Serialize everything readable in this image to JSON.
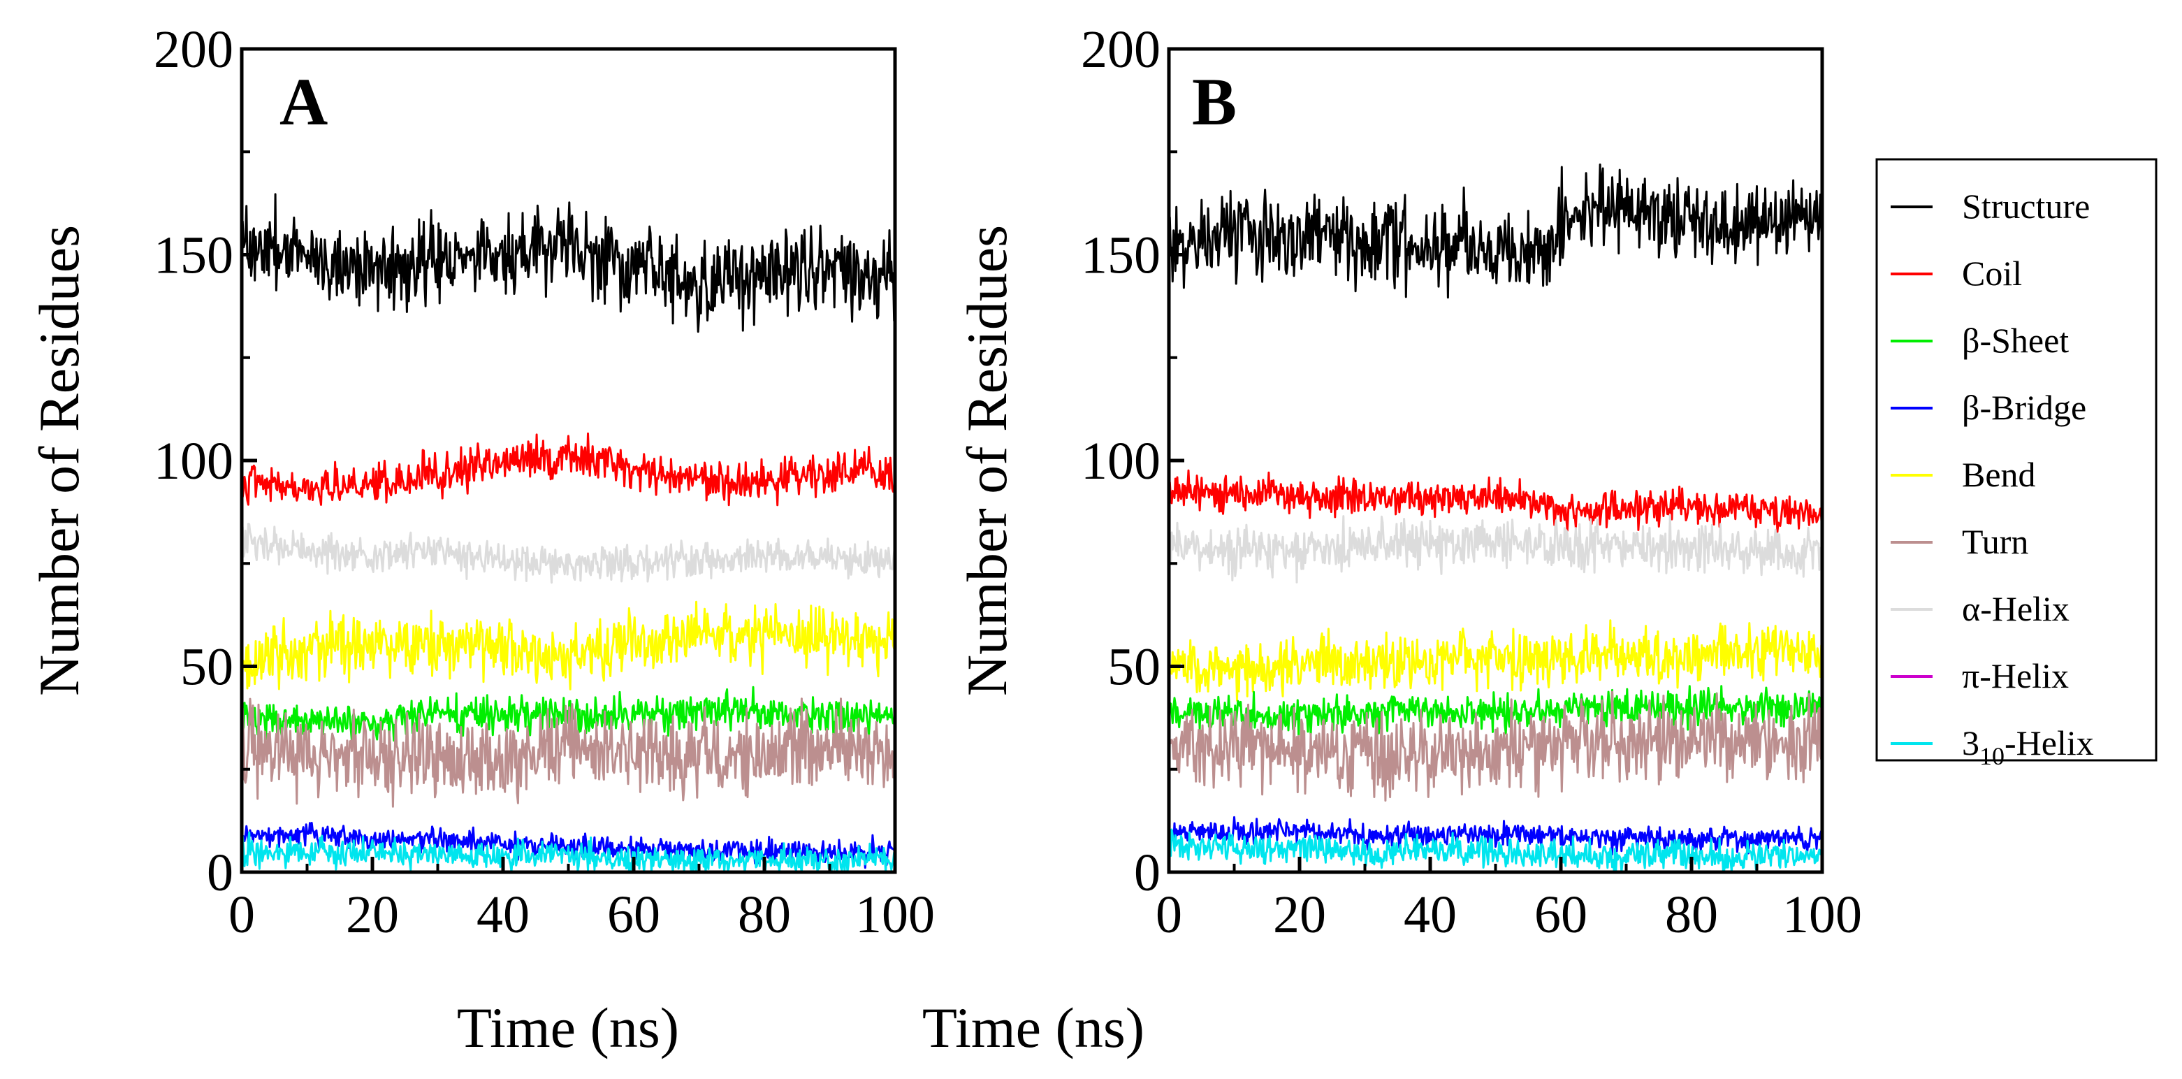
{
  "chart_data": [
    {
      "type": "line",
      "panel_label": "A",
      "xlabel": "Time (ns)",
      "ylabel": "Number of Residues",
      "xlim": [
        0,
        100
      ],
      "ylim": [
        0,
        200
      ],
      "xticks": [
        "0",
        "20",
        "40",
        "60",
        "80",
        "100"
      ],
      "yticks": [
        "0",
        "50",
        "100",
        "150",
        "200"
      ],
      "series": [
        {
          "name": "Structure",
          "color": "#000000",
          "noise": 7,
          "points": [
            [
              0,
              153
            ],
            [
              10,
              150
            ],
            [
              20,
              147
            ],
            [
              30,
              149
            ],
            [
              40,
              150
            ],
            [
              50,
              152
            ],
            [
              60,
              146
            ],
            [
              70,
              142
            ],
            [
              80,
              146
            ],
            [
              90,
              148
            ],
            [
              100,
              143
            ]
          ]
        },
        {
          "name": "Coil",
          "color": "#ff0000",
          "noise": 3.5,
          "points": [
            [
              0,
              95
            ],
            [
              10,
              93
            ],
            [
              20,
              94
            ],
            [
              30,
              97
            ],
            [
              40,
              99
            ],
            [
              50,
              101
            ],
            [
              60,
              98
            ],
            [
              70,
              96
            ],
            [
              80,
              94
            ],
            [
              90,
              97
            ],
            [
              100,
              97
            ]
          ]
        },
        {
          "name": "α-Helix",
          "color": "#dcdcdc",
          "noise": 3,
          "points": [
            [
              0,
              80
            ],
            [
              10,
              78
            ],
            [
              20,
              77
            ],
            [
              30,
              78
            ],
            [
              40,
              76
            ],
            [
              50,
              75
            ],
            [
              60,
              75
            ],
            [
              70,
              76
            ],
            [
              80,
              77
            ],
            [
              90,
              76
            ],
            [
              100,
              76
            ]
          ]
        },
        {
          "name": "Bend",
          "color": "#ffff00",
          "noise": 5,
          "points": [
            [
              0,
              52
            ],
            [
              10,
              54
            ],
            [
              20,
              55
            ],
            [
              30,
              55
            ],
            [
              40,
              55
            ],
            [
              50,
              52
            ],
            [
              60,
              56
            ],
            [
              70,
              57
            ],
            [
              80,
              58
            ],
            [
              90,
              57
            ],
            [
              100,
              57
            ]
          ]
        },
        {
          "name": "β-Sheet",
          "color": "#00ee00",
          "noise": 3,
          "points": [
            [
              0,
              37
            ],
            [
              10,
              37
            ],
            [
              20,
              36
            ],
            [
              30,
              38
            ],
            [
              40,
              38
            ],
            [
              50,
              38
            ],
            [
              60,
              38
            ],
            [
              70,
              39
            ],
            [
              80,
              39
            ],
            [
              90,
              38
            ],
            [
              100,
              38
            ]
          ]
        },
        {
          "name": "Turn",
          "color": "#bc8f8f",
          "noise": 7,
          "points": [
            [
              0,
              30
            ],
            [
              10,
              30
            ],
            [
              20,
              28
            ],
            [
              30,
              28
            ],
            [
              40,
              27
            ],
            [
              50,
              30
            ],
            [
              60,
              29
            ],
            [
              70,
              28
            ],
            [
              80,
              29
            ],
            [
              90,
              30
            ],
            [
              100,
              29
            ]
          ]
        },
        {
          "name": "β-Bridge",
          "color": "#0000ff",
          "noise": 2,
          "points": [
            [
              0,
              9
            ],
            [
              10,
              9
            ],
            [
              20,
              8
            ],
            [
              30,
              8
            ],
            [
              40,
              7
            ],
            [
              50,
              6
            ],
            [
              60,
              6
            ],
            [
              70,
              5
            ],
            [
              80,
              5
            ],
            [
              90,
              5
            ],
            [
              100,
              5
            ]
          ]
        },
        {
          "name": "π-Helix",
          "color": "#cc00cc",
          "noise": 0,
          "points": [
            [
              0,
              0
            ],
            [
              100,
              0
            ]
          ]
        },
        {
          "name": "310-Helix",
          "color": "#00e5ee",
          "noise": 2.5,
          "points": [
            [
              0,
              5
            ],
            [
              10,
              5
            ],
            [
              20,
              5
            ],
            [
              30,
              4
            ],
            [
              40,
              4
            ],
            [
              50,
              4
            ],
            [
              60,
              3
            ],
            [
              70,
              3
            ],
            [
              80,
              3
            ],
            [
              90,
              3
            ],
            [
              100,
              3
            ]
          ]
        }
      ]
    },
    {
      "type": "line",
      "panel_label": "B",
      "xlabel": "Time (ns)",
      "ylabel": "Number of Residues",
      "xlim": [
        0,
        100
      ],
      "ylim": [
        0,
        200
      ],
      "xticks": [
        "0",
        "20",
        "40",
        "60",
        "80",
        "100"
      ],
      "yticks": [
        "0",
        "50",
        "100",
        "150",
        "200"
      ],
      "series": [
        {
          "name": "Structure",
          "color": "#000000",
          "noise": 7,
          "points": [
            [
              0,
              152
            ],
            [
              10,
              155
            ],
            [
              20,
              155
            ],
            [
              30,
              154
            ],
            [
              40,
              153
            ],
            [
              50,
              151
            ],
            [
              55,
              150
            ],
            [
              59,
              151
            ],
            [
              60,
              160
            ],
            [
              70,
              161
            ],
            [
              80,
              159
            ],
            [
              90,
              158
            ],
            [
              100,
              160
            ]
          ]
        },
        {
          "name": "Coil",
          "color": "#ff0000",
          "noise": 3,
          "points": [
            [
              0,
              93
            ],
            [
              10,
              92
            ],
            [
              20,
              91
            ],
            [
              30,
              91
            ],
            [
              40,
              91
            ],
            [
              50,
              91
            ],
            [
              58,
              90
            ],
            [
              60,
              88
            ],
            [
              70,
              88
            ],
            [
              80,
              89
            ],
            [
              90,
              88
            ],
            [
              100,
              87
            ]
          ]
        },
        {
          "name": "α-Helix",
          "color": "#dcdcdc",
          "noise": 4,
          "points": [
            [
              0,
              80
            ],
            [
              10,
              78
            ],
            [
              20,
              78
            ],
            [
              30,
              80
            ],
            [
              40,
              80
            ],
            [
              50,
              80
            ],
            [
              60,
              79
            ],
            [
              70,
              79
            ],
            [
              80,
              79
            ],
            [
              90,
              78
            ],
            [
              100,
              78
            ]
          ]
        },
        {
          "name": "Bend",
          "color": "#ffff00",
          "noise": 4.5,
          "points": [
            [
              0,
              50
            ],
            [
              10,
              50
            ],
            [
              20,
              51
            ],
            [
              30,
              51
            ],
            [
              40,
              51
            ],
            [
              50,
              52
            ],
            [
              60,
              52
            ],
            [
              70,
              52
            ],
            [
              80,
              53
            ],
            [
              90,
              53
            ],
            [
              100,
              54
            ]
          ]
        },
        {
          "name": "β-Sheet",
          "color": "#00ee00",
          "noise": 3,
          "points": [
            [
              0,
              39
            ],
            [
              10,
              38
            ],
            [
              20,
              38
            ],
            [
              30,
              39
            ],
            [
              40,
              39
            ],
            [
              50,
              39
            ],
            [
              60,
              40
            ],
            [
              70,
              40
            ],
            [
              80,
              40
            ],
            [
              90,
              40
            ],
            [
              100,
              40
            ]
          ]
        },
        {
          "name": "Turn",
          "color": "#bc8f8f",
          "noise": 7,
          "points": [
            [
              0,
              30
            ],
            [
              10,
              30
            ],
            [
              20,
              29
            ],
            [
              30,
              29
            ],
            [
              40,
              29
            ],
            [
              50,
              30
            ],
            [
              60,
              31
            ],
            [
              70,
              31
            ],
            [
              80,
              32
            ],
            [
              90,
              32
            ],
            [
              100,
              32
            ]
          ]
        },
        {
          "name": "β-Bridge",
          "color": "#0000ff",
          "noise": 2,
          "points": [
            [
              0,
              10
            ],
            [
              10,
              10
            ],
            [
              20,
              10
            ],
            [
              30,
              9
            ],
            [
              40,
              9
            ],
            [
              50,
              9
            ],
            [
              60,
              9
            ],
            [
              70,
              8
            ],
            [
              80,
              8
            ],
            [
              90,
              8
            ],
            [
              100,
              8
            ]
          ]
        },
        {
          "name": "π-Helix",
          "color": "#cc00cc",
          "noise": 0,
          "points": [
            [
              0,
              0
            ],
            [
              100,
              0
            ]
          ]
        },
        {
          "name": "310-Helix",
          "color": "#00e5ee",
          "noise": 2.5,
          "points": [
            [
              0,
              7
            ],
            [
              10,
              6
            ],
            [
              20,
              6
            ],
            [
              30,
              5
            ],
            [
              40,
              5
            ],
            [
              50,
              5
            ],
            [
              60,
              4
            ],
            [
              70,
              4
            ],
            [
              80,
              4
            ],
            [
              90,
              4
            ],
            [
              100,
              4
            ]
          ]
        }
      ]
    }
  ],
  "legend": {
    "items": [
      {
        "label": "Structure",
        "color": "#000000"
      },
      {
        "label": "Coil",
        "color": "#ff0000"
      },
      {
        "label": "β-Sheet",
        "color": "#00ee00"
      },
      {
        "label": "β-Bridge",
        "color": "#0000ff"
      },
      {
        "label": "Bend",
        "color": "#ffff00"
      },
      {
        "label": "Turn",
        "color": "#bc8f8f"
      },
      {
        "label": "α-Helix",
        "color": "#dcdcdc"
      },
      {
        "label": "π-Helix",
        "color": "#cc00cc"
      },
      {
        "label": "3",
        "sub": "10",
        "suffix": "-Helix",
        "color": "#00e5ee"
      }
    ]
  }
}
